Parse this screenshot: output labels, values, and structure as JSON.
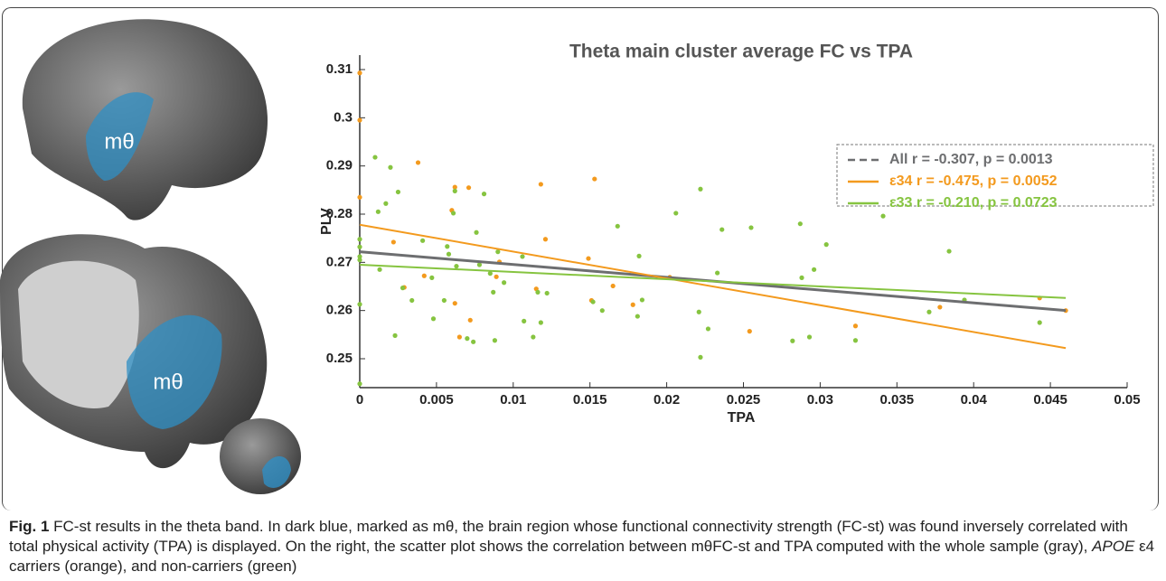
{
  "panel_labels": [
    "mθ",
    "mθ"
  ],
  "chart_data": {
    "type": "scatter",
    "title": "Theta main cluster average FC vs TPA",
    "x_label": "TPA",
    "y_label": "PLV",
    "xlim": [
      0,
      0.05
    ],
    "ylim": [
      0.244,
      0.313
    ],
    "xticks": [
      0,
      0.005,
      0.01,
      0.015,
      0.02,
      0.025,
      0.03,
      0.035,
      0.04,
      0.045,
      0.05
    ],
    "yticks": [
      0.25,
      0.26,
      0.27,
      0.28,
      0.29,
      0.3,
      0.31
    ],
    "series": [
      {
        "color": "#f39a1e",
        "x": [
          0,
          0,
          0,
          0.0038,
          0.0022,
          0.006,
          0.0062,
          0.0071,
          0.0042,
          0.0062,
          0.0065,
          0.0072,
          0.0089,
          0.0091,
          0.0118,
          0.0121,
          0.0115,
          0.0153,
          0.0149,
          0.0151,
          0.0165,
          0.0178,
          0.0202,
          0.0254,
          0.0323,
          0.0378,
          0.0443,
          0.046,
          0.0029
        ],
        "values": [
          0.3093,
          0.2995,
          0.2835,
          0.2907,
          0.2742,
          0.2808,
          0.2856,
          0.2855,
          0.2672,
          0.2615,
          0.2545,
          0.258,
          0.267,
          0.2701,
          0.2862,
          0.2748,
          0.2645,
          0.2873,
          0.2708,
          0.2621,
          0.2651,
          0.2612,
          0.2669,
          0.2557,
          0.2568,
          0.2607,
          0.2626,
          0.26,
          0.2648
        ]
      },
      {
        "color": "#86c440",
        "x": [
          0,
          0,
          0,
          0,
          0,
          0,
          0.001,
          0.0012,
          0.0017,
          0.002,
          0.0025,
          0.0013,
          0.0023,
          0.0028,
          0.0034,
          0.0041,
          0.0047,
          0.0048,
          0.0055,
          0.0057,
          0.0058,
          0.0061,
          0.0062,
          0.0063,
          0.007,
          0.0074,
          0.0076,
          0.0078,
          0.0081,
          0.0085,
          0.0087,
          0.0088,
          0.009,
          0.0094,
          0.0106,
          0.0107,
          0.0113,
          0.0116,
          0.0118,
          0.0122,
          0.0152,
          0.0158,
          0.0168,
          0.0181,
          0.0182,
          0.0184,
          0.0206,
          0.0222,
          0.0221,
          0.0222,
          0.0227,
          0.0233,
          0.0236,
          0.0255,
          0.0282,
          0.0287,
          0.0288,
          0.0293,
          0.0296,
          0.0304,
          0.0323,
          0.0341,
          0.0371,
          0.0384,
          0.0394,
          0.0443
        ],
        "values": [
          0.2748,
          0.2732,
          0.2712,
          0.2705,
          0.2613,
          0.2448,
          0.2918,
          0.2805,
          0.2822,
          0.2897,
          0.2846,
          0.2685,
          0.2548,
          0.2647,
          0.2621,
          0.2745,
          0.2668,
          0.2583,
          0.2621,
          0.2733,
          0.2717,
          0.2802,
          0.2848,
          0.2692,
          0.2542,
          0.2535,
          0.2762,
          0.2695,
          0.2842,
          0.2677,
          0.2638,
          0.2538,
          0.2722,
          0.2658,
          0.2712,
          0.2578,
          0.2545,
          0.2638,
          0.2575,
          0.2636,
          0.2618,
          0.26,
          0.2775,
          0.2588,
          0.2713,
          0.2622,
          0.2802,
          0.2852,
          0.2597,
          0.2503,
          0.2562,
          0.2678,
          0.2768,
          0.2772,
          0.2537,
          0.278,
          0.2668,
          0.2545,
          0.2685,
          0.2737,
          0.2538,
          0.2796,
          0.2597,
          0.2723,
          0.2622,
          0.2575
        ]
      }
    ],
    "fit_lines": [
      {
        "name": "All   r = -0.307, p = 0.0013",
        "color": "#6d6e70",
        "legend_dashed": true,
        "x": [
          0,
          0.046
        ],
        "values": [
          0.2722,
          0.26
        ]
      },
      {
        "name": "ε34 r = -0.475, p = 0.0052",
        "color": "#f39a1e",
        "legend_dashed": false,
        "x": [
          0,
          0.046
        ],
        "values": [
          0.2778,
          0.2522
        ]
      },
      {
        "name": "ε33 r = -0.210, p = 0.0723",
        "color": "#86c440",
        "legend_dashed": false,
        "x": [
          0,
          0.046
        ],
        "values": [
          0.2695,
          0.2626
        ]
      }
    ]
  },
  "caption": {
    "label": "Fig. 1",
    "text1": " FC-st results in the theta band. In dark blue, marked as mθ, the brain region whose functional connectivity strength (FC-st) was found inversely correlated with total physical activity (TPA) is displayed. On the right, the scatter plot shows the correlation between mθFC-st and TPA computed with the whole sample (gray), ",
    "italic": "APOE",
    "text2": " ε4 carriers (orange), and non-carriers (green)"
  }
}
